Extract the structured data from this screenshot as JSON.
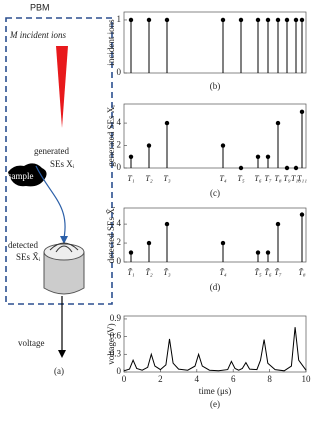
{
  "diagram": {
    "pbm": "PBM",
    "incident": "M incident ions",
    "generated_1": "generated",
    "generated_2": "SEs Xᵢ",
    "sample": "sample",
    "detected_1": "detected",
    "detected_2": "SEs X̃ᵢ",
    "voltage": "voltage",
    "label": "(a)"
  },
  "chart_data": [
    {
      "type": "stem",
      "ylabel": "incident ions",
      "panel": "(b)",
      "values": [
        1,
        1,
        1,
        1,
        1,
        1,
        1,
        1,
        1,
        1,
        1
      ],
      "ylim": [
        0,
        1.15
      ],
      "yticks": [
        0,
        1
      ],
      "color": "#000000"
    },
    {
      "type": "stem",
      "ylabel": "generated SEs Xᵢ",
      "panel": "(c)",
      "categories": [
        "T₁",
        "T₂",
        "T₃",
        "T₄",
        "T₅",
        "T₆",
        "T₇",
        "T₈",
        "T₉",
        "T₁₀",
        "T₁₁"
      ],
      "values": [
        1,
        2,
        4,
        2,
        0,
        1,
        1,
        4,
        0,
        0,
        5
      ],
      "ylim": [
        0,
        5.7
      ],
      "yticks": [
        0,
        2,
        4
      ],
      "color": "#000000"
    },
    {
      "type": "stem",
      "ylabel": "detected SEs X̃ᵢ",
      "panel": "(d)",
      "categories": [
        "T̃₁",
        "T̃₂",
        "T̃₃",
        "T̃₄",
        "T̃₅",
        "T̃₆",
        "T̃₇",
        "T̃₈"
      ],
      "values": [
        1,
        2,
        4,
        2,
        1,
        1,
        4,
        5
      ],
      "ylim": [
        0,
        5.7
      ],
      "yticks": [
        0,
        2,
        4
      ],
      "color": "#000000"
    },
    {
      "type": "line",
      "ylabel": "voltage (V)",
      "xlabel": "time (μs)",
      "panel": "(e)",
      "x": [
        0,
        0.3,
        0.5,
        0.7,
        1.0,
        1.3,
        1.5,
        1.7,
        2.0,
        2.3,
        2.5,
        2.7,
        3.0,
        3.5,
        3.9,
        4.1,
        4.3,
        4.7,
        5.2,
        5.7,
        5.9,
        6.1,
        6.3,
        6.5,
        6.7,
        6.9,
        7.3,
        7.5,
        7.7,
        7.9,
        8.3,
        8.8,
        9.2,
        9.4,
        9.6,
        10
      ],
      "values": [
        0.02,
        0.05,
        0.2,
        0.06,
        0.03,
        0.08,
        0.3,
        0.1,
        0.04,
        0.12,
        0.56,
        0.15,
        0.05,
        0.03,
        0.1,
        0.3,
        0.1,
        0.03,
        0.02,
        0.04,
        0.18,
        0.06,
        0.03,
        0.06,
        0.16,
        0.05,
        0.04,
        0.2,
        0.55,
        0.15,
        0.04,
        0.02,
        0.1,
        0.76,
        0.2,
        0.03
      ],
      "xlim": [
        0,
        10
      ],
      "xticks": [
        0,
        2,
        4,
        6,
        8,
        10
      ],
      "ylim": [
        0,
        0.95
      ],
      "yticks": [
        0,
        0.3,
        0.6,
        0.9
      ],
      "color": "#000000"
    }
  ]
}
